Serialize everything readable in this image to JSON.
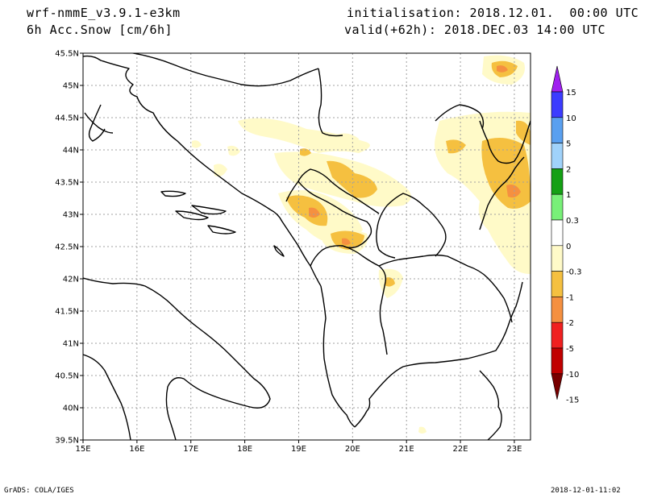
{
  "header": {
    "model": "wrf-nmmE_v3.9.1-e3km",
    "field": "6h Acc.Snow [cm/6h]",
    "init": "initialisation: 2018.12.01.  00:00 UTC",
    "valid": "valid(+62h): 2018.DEC.03 14:00 UTC"
  },
  "footer": {
    "credit": "GrADS: COLA/IGES",
    "timestamp": "2018-12-01-11:02"
  },
  "map": {
    "lat_labels": [
      "45.5N",
      "45N",
      "44.5N",
      "44N",
      "43.5N",
      "43N",
      "42.5N",
      "42N",
      "41.5N",
      "41N",
      "40.5N",
      "40N",
      "39.5N"
    ],
    "lon_labels": [
      "15E",
      "16E",
      "17E",
      "18E",
      "19E",
      "20E",
      "21E",
      "22E",
      "23E"
    ],
    "lat_range": [
      39.5,
      45.5
    ],
    "lon_range": [
      15.0,
      23.3
    ]
  },
  "colorbar": {
    "labels": [
      "15",
      "10",
      "5",
      "2",
      "1",
      "0.3",
      "0",
      "-0.3",
      "-1",
      "-2",
      "-5",
      "-10",
      "-15"
    ],
    "colors": [
      "#a020f0",
      "#3c3cff",
      "#5aa0f0",
      "#a0d2fa",
      "#14a014",
      "#78f078",
      "#ffffff",
      "#fffac8",
      "#f5c040",
      "#f59040",
      "#f02020",
      "#c00000",
      "#780000"
    ]
  },
  "icons": [
    "map-coastline",
    "colorbar-arrow-up",
    "colorbar-arrow-down"
  ]
}
